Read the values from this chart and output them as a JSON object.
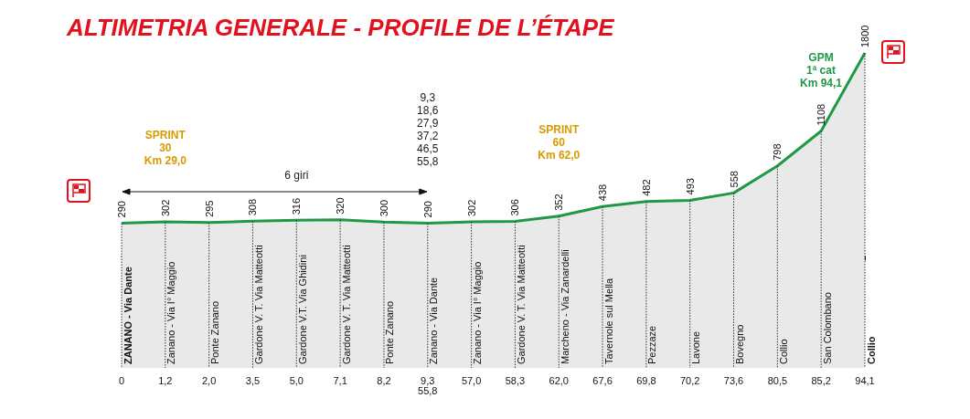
{
  "chart_data": {
    "type": "area",
    "title": "ALTIMETRIA GENERALE - PROFILE DE L’ÉTAPE",
    "color": "#1f9a44",
    "categories": [
      "0",
      "1,2",
      "2,0",
      "3,5",
      "5,0",
      "7,1",
      "8,2",
      "9,3\n55,8",
      "57,0",
      "58,3",
      "62,0",
      "67,6",
      "69,8",
      "70,2",
      "73,6",
      "80,5",
      "85,2",
      "94,1"
    ],
    "values": [
      290,
      302,
      295,
      308,
      316,
      320,
      300,
      290,
      302,
      306,
      352,
      438,
      482,
      493,
      558,
      798,
      1108,
      1800
    ],
    "data_labels": true,
    "grid": "x",
    "marker": "none",
    "tick_labels": "x",
    "annotations": [
      "ZANANO - Via Dante",
      "Zanano - Via I° Maggio",
      "Ponte Zanano",
      "Gardone V. T. Via Matteotti",
      "Gardone V.T. Via Ghidini",
      "Gardone V. T. Via Matteotti",
      "Ponte Zanano",
      "Zanano - Via Dante",
      "Zanano - Via I° Maggio",
      "Gardone V. T. Via Matteotti",
      "Marcheno - Via Zanardelli",
      "Tavernole sul Mella",
      "Pezzaze",
      "Lavone",
      "Bovegno",
      "Collio",
      "San Colombano",
      "Collio",
      "SPRINT\n30\nKm 29,0",
      "6 giri",
      "9,3\n18,6\n27,9\n37,2\n46,5\n55,8",
      "SPRINT\n60\nKm 62,0",
      "GPM\n1ª cat\nKm 94,1"
    ]
  }
}
